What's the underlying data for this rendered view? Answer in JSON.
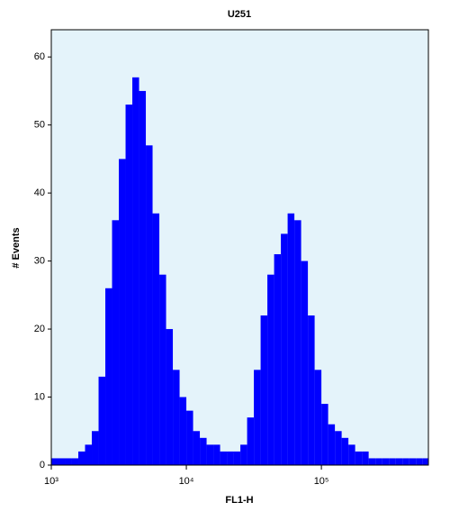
{
  "chart_data": {
    "type": "bar",
    "title": "U251",
    "xlabel": "FL1-H",
    "ylabel": "# Events",
    "xscale": "log",
    "color": "#0000ff",
    "background": "#e4f3fa",
    "x": [
      1000,
      1122,
      1259,
      1413,
      1585,
      1778,
      1995,
      2239,
      2512,
      2818,
      3162,
      3548,
      3981,
      4467,
      5012,
      5623,
      6310,
      7079,
      7943,
      8913,
      10000,
      11220,
      12589,
      14125,
      15849,
      17783,
      19953,
      22387,
      25119,
      28184,
      31623,
      35481,
      39811,
      44668,
      50119,
      56234,
      63096,
      70795,
      79433,
      89125,
      100000,
      112202,
      125893,
      141254,
      158489,
      177828,
      199526,
      223872,
      251189,
      281838,
      316228,
      354813,
      398107,
      446684,
      501187,
      562341
    ],
    "values": [
      1,
      1,
      1,
      1,
      2,
      3,
      5,
      13,
      26,
      36,
      45,
      53,
      57,
      55,
      47,
      37,
      28,
      20,
      14,
      10,
      8,
      5,
      4,
      3,
      3,
      2,
      2,
      2,
      3,
      7,
      14,
      22,
      28,
      31,
      34,
      37,
      36,
      30,
      22,
      14,
      9,
      6,
      5,
      4,
      3,
      2,
      2,
      1,
      1,
      1,
      1,
      1,
      1,
      1,
      1,
      1
    ],
    "xlim": [
      1000,
      620000
    ],
    "ylim": [
      0,
      64
    ],
    "xticks": [
      {
        "value": 1000,
        "label": "10³"
      },
      {
        "value": 10000,
        "label": "10⁴"
      },
      {
        "value": 100000,
        "label": "10⁵"
      }
    ],
    "yticks": [
      0,
      10,
      20,
      30,
      40,
      50,
      60
    ]
  }
}
